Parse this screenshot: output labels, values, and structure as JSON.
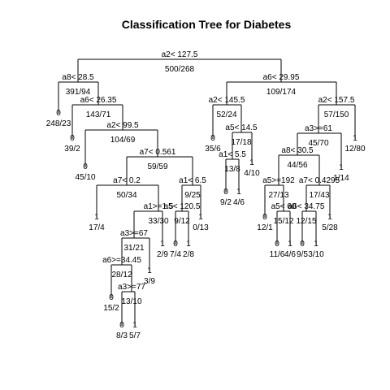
{
  "chart_data": {
    "type": "tree",
    "title": "Classification Tree for Diabetes",
    "nodes": [
      {
        "id": "n1",
        "split": "a2< 127.5",
        "counts": "500/268"
      },
      {
        "id": "n2",
        "split": "a8< 28.5",
        "counts": "391/94"
      },
      {
        "id": "n3",
        "split": "a6< 29.95",
        "counts": "109/174"
      },
      {
        "id": "n4",
        "class": "0",
        "counts": "248/23"
      },
      {
        "id": "n5",
        "split": "a6< 26.35",
        "counts": "143/71"
      },
      {
        "id": "n6",
        "split": "a2< 145.5",
        "counts": "52/24"
      },
      {
        "id": "n7",
        "split": "a2< 157.5",
        "counts": "57/150"
      },
      {
        "id": "n8",
        "class": "0",
        "counts": "39/2"
      },
      {
        "id": "n9",
        "split": "a2< 99.5",
        "counts": "104/69"
      },
      {
        "id": "n10",
        "class": "0",
        "counts": "35/6"
      },
      {
        "id": "n11",
        "split": "a5< 14.5",
        "counts": "17/18"
      },
      {
        "id": "n12",
        "split": "a3>=61",
        "counts": "45/70"
      },
      {
        "id": "n13",
        "class": "1",
        "counts": "12/80"
      },
      {
        "id": "n14",
        "class": "0",
        "counts": "45/10"
      },
      {
        "id": "n15",
        "split": "a7< 0.561",
        "counts": "59/59"
      },
      {
        "id": "n16",
        "split": "a1< 5.5",
        "counts": "13/8"
      },
      {
        "id": "n17",
        "class": "1",
        "counts": "4/10"
      },
      {
        "id": "n18",
        "split": "a8< 30.5",
        "counts": "44/56"
      },
      {
        "id": "n19",
        "class": "1",
        "counts": "1/14"
      },
      {
        "id": "n20",
        "split": "a7< 0.2",
        "counts": "50/34"
      },
      {
        "id": "n21",
        "split": "a1< 6.5",
        "counts": "9/25"
      },
      {
        "id": "n22",
        "class": "0",
        "counts": "9/2"
      },
      {
        "id": "n23",
        "class": "1",
        "counts": "4/6"
      },
      {
        "id": "n24",
        "split": "a5>=192",
        "counts": "27/13"
      },
      {
        "id": "n25",
        "split": "a7< 0.4295",
        "counts": "17/43"
      },
      {
        "id": "n26",
        "class": "1",
        "counts": "17/4"
      },
      {
        "id": "n27",
        "split": "a1>=1.5",
        "counts": "33/30"
      },
      {
        "id": "n28",
        "split": "a5< 120.5",
        "counts": "9/12"
      },
      {
        "id": "n29",
        "class": "1",
        "counts": "0/13"
      },
      {
        "id": "n30",
        "class": "0",
        "counts": "12/1"
      },
      {
        "id": "n31",
        "split": "a5< 60",
        "counts": "15/12"
      },
      {
        "id": "n32",
        "split": "a6< 34.75",
        "counts": "12/15"
      },
      {
        "id": "n33",
        "class": "1",
        "counts": "5/28"
      },
      {
        "id": "n34",
        "split": "a3>=67",
        "counts": "31/21"
      },
      {
        "id": "n35",
        "class": "1",
        "counts": "2/9"
      },
      {
        "id": "n36",
        "class": "0",
        "counts": "7/4"
      },
      {
        "id": "n37",
        "class": "1",
        "counts": "2/8"
      },
      {
        "id": "n38",
        "class": "0",
        "counts": "11/6"
      },
      {
        "id": "n39",
        "class": "1",
        "counts": "4/6"
      },
      {
        "id": "n40",
        "class": "0",
        "counts": "9/5"
      },
      {
        "id": "n41",
        "class": "1",
        "counts": "3/10"
      },
      {
        "id": "n42",
        "split": "a6>=34.45",
        "counts": "28/12"
      },
      {
        "id": "n43",
        "class": "1",
        "counts": "3/9"
      },
      {
        "id": "n44",
        "class": "0",
        "counts": "15/2"
      },
      {
        "id": "n45",
        "split": "a3>=77",
        "counts": "13/10"
      },
      {
        "id": "n46",
        "class": "0",
        "counts": "8/3"
      },
      {
        "id": "n47",
        "class": "1",
        "counts": "5/7"
      }
    ],
    "edges": [
      [
        "n1",
        "n2"
      ],
      [
        "n1",
        "n3"
      ],
      [
        "n2",
        "n4"
      ],
      [
        "n2",
        "n5"
      ],
      [
        "n3",
        "n6"
      ],
      [
        "n3",
        "n7"
      ],
      [
        "n5",
        "n8"
      ],
      [
        "n5",
        "n9"
      ],
      [
        "n6",
        "n10"
      ],
      [
        "n6",
        "n11"
      ],
      [
        "n7",
        "n12"
      ],
      [
        "n7",
        "n13"
      ],
      [
        "n9",
        "n14"
      ],
      [
        "n9",
        "n15"
      ],
      [
        "n11",
        "n16"
      ],
      [
        "n11",
        "n17"
      ],
      [
        "n12",
        "n18"
      ],
      [
        "n12",
        "n19"
      ],
      [
        "n15",
        "n20"
      ],
      [
        "n15",
        "n21"
      ],
      [
        "n16",
        "n22"
      ],
      [
        "n16",
        "n23"
      ],
      [
        "n18",
        "n24"
      ],
      [
        "n18",
        "n25"
      ],
      [
        "n20",
        "n26"
      ],
      [
        "n20",
        "n27"
      ],
      [
        "n21",
        "n28"
      ],
      [
        "n21",
        "n29"
      ],
      [
        "n24",
        "n30"
      ],
      [
        "n24",
        "n31"
      ],
      [
        "n25",
        "n32"
      ],
      [
        "n25",
        "n33"
      ],
      [
        "n27",
        "n34"
      ],
      [
        "n27",
        "n35"
      ],
      [
        "n28",
        "n36"
      ],
      [
        "n28",
        "n37"
      ],
      [
        "n31",
        "n38"
      ],
      [
        "n31",
        "n39"
      ],
      [
        "n32",
        "n40"
      ],
      [
        "n32",
        "n41"
      ],
      [
        "n34",
        "n42"
      ],
      [
        "n34",
        "n43"
      ],
      [
        "n42",
        "n44"
      ],
      [
        "n42",
        "n45"
      ],
      [
        "n45",
        "n46"
      ],
      [
        "n45",
        "n47"
      ]
    ]
  }
}
